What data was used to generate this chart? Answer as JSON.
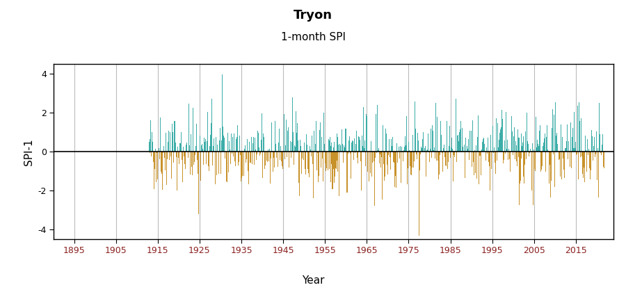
{
  "title": "Tryon",
  "subtitle": "1-month SPI",
  "xlabel": "Year",
  "ylabel": "SPI-1",
  "xlim": [
    1890,
    2024
  ],
  "ylim": [
    -4.5,
    4.5
  ],
  "yticks": [
    -4,
    -2,
    0,
    2,
    4
  ],
  "xticks": [
    1895,
    1905,
    1915,
    1925,
    1935,
    1945,
    1955,
    1965,
    1975,
    1985,
    1995,
    2005,
    2015
  ],
  "data_start_year": 1913,
  "data_end_year": 2021,
  "color_positive": "#3DADA8",
  "color_negative": "#C8922A",
  "color_zero_line": "#000000",
  "color_grid": "#BBBBBB",
  "color_tick_label": "#8B2020",
  "background_color": "#FFFFFF",
  "title_fontsize": 13,
  "subtitle_fontsize": 11,
  "axis_label_fontsize": 11,
  "tick_fontsize": 9,
  "seed": 42
}
